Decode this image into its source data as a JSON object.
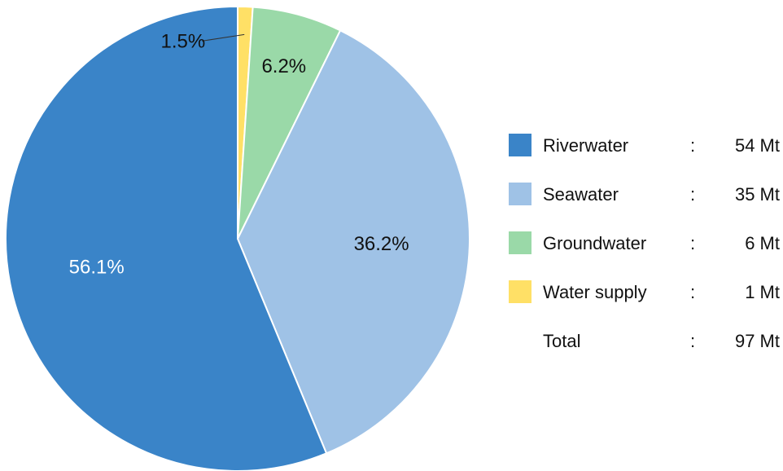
{
  "chart_data": {
    "type": "pie",
    "start_angle_deg": 0,
    "direction": "clockwise",
    "slices": [
      {
        "name": "Water supply",
        "value": 1,
        "percent_label": "1.5%",
        "color": "#ffe066",
        "label_color": "#111111"
      },
      {
        "name": "Groundwater",
        "value": 6,
        "percent_label": "6.2%",
        "color": "#9ad9a8",
        "label_color": "#111111"
      },
      {
        "name": "Seawater",
        "value": 35,
        "percent_label": "36.2%",
        "color": "#9fc2e6",
        "label_color": "#111111"
      },
      {
        "name": "Riverwater",
        "value": 54,
        "percent_label": "56.1%",
        "color": "#3a84c8",
        "label_color": "#ffffff"
      }
    ],
    "legend": {
      "placement": "right",
      "items": [
        {
          "name": "Riverwater",
          "sep": ":",
          "amount": "54 Mt",
          "color": "#3a84c8"
        },
        {
          "name": "Seawater",
          "sep": ":",
          "amount": "35 Mt",
          "color": "#9fc2e6"
        },
        {
          "name": "Groundwater",
          "sep": ":",
          "amount": "6 Mt",
          "color": "#9ad9a8"
        },
        {
          "name": "Water supply",
          "sep": ":",
          "amount": "1 Mt",
          "color": "#ffe066"
        }
      ],
      "total": {
        "name": "Total",
        "sep": ":",
        "amount": "97 Mt"
      }
    }
  }
}
